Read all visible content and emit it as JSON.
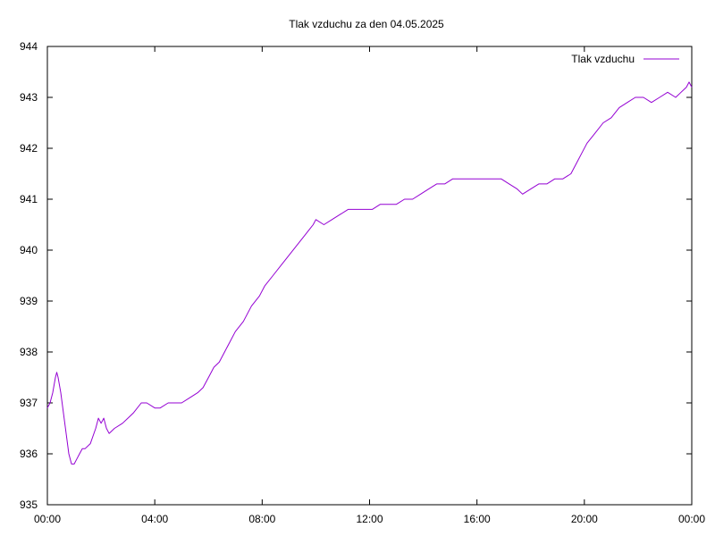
{
  "chart_data": {
    "type": "line",
    "title": "Tlak vzduchu za den 04.05.2025",
    "xlabel": "",
    "ylabel": "",
    "xlim": [
      0,
      24
    ],
    "ylim": [
      935,
      944
    ],
    "x_ticks": [
      {
        "value": 0,
        "label": "00:00"
      },
      {
        "value": 4,
        "label": "04:00"
      },
      {
        "value": 8,
        "label": "08:00"
      },
      {
        "value": 12,
        "label": "12:00"
      },
      {
        "value": 16,
        "label": "16:00"
      },
      {
        "value": 20,
        "label": "20:00"
      },
      {
        "value": 24,
        "label": "00:00"
      }
    ],
    "y_ticks": [
      {
        "value": 935,
        "label": "935"
      },
      {
        "value": 936,
        "label": "936"
      },
      {
        "value": 937,
        "label": "937"
      },
      {
        "value": 938,
        "label": "938"
      },
      {
        "value": 939,
        "label": "939"
      },
      {
        "value": 940,
        "label": "940"
      },
      {
        "value": 941,
        "label": "941"
      },
      {
        "value": 942,
        "label": "942"
      },
      {
        "value": 943,
        "label": "943"
      },
      {
        "value": 944,
        "label": "944"
      }
    ],
    "grid": false,
    "legend_position": "top-right",
    "series": [
      {
        "name": "Tlak vzduchu",
        "color": "#9400d3",
        "x": [
          0.0,
          0.1,
          0.2,
          0.3,
          0.35,
          0.4,
          0.5,
          0.6,
          0.7,
          0.8,
          0.9,
          1.0,
          1.1,
          1.2,
          1.3,
          1.4,
          1.6,
          1.8,
          1.9,
          2.0,
          2.1,
          2.2,
          2.3,
          2.5,
          2.8,
          3.0,
          3.2,
          3.5,
          3.7,
          4.0,
          4.2,
          4.5,
          5.0,
          5.3,
          5.6,
          5.8,
          6.0,
          6.2,
          6.4,
          6.6,
          6.8,
          7.0,
          7.3,
          7.6,
          7.9,
          8.1,
          8.4,
          8.7,
          9.0,
          9.3,
          9.6,
          9.9,
          10.0,
          10.3,
          10.6,
          10.9,
          11.2,
          11.5,
          11.8,
          12.1,
          12.4,
          12.7,
          13.0,
          13.3,
          13.6,
          13.9,
          14.2,
          14.5,
          14.8,
          15.1,
          15.4,
          15.7,
          16.0,
          16.3,
          16.6,
          16.9,
          17.2,
          17.5,
          17.7,
          18.0,
          18.3,
          18.6,
          18.9,
          19.2,
          19.5,
          19.7,
          19.9,
          20.1,
          20.4,
          20.7,
          21.0,
          21.3,
          21.6,
          21.9,
          22.2,
          22.5,
          22.8,
          23.1,
          23.4,
          23.6,
          23.8,
          23.9,
          24.0
        ],
        "y": [
          936.9,
          937.0,
          937.2,
          937.5,
          937.6,
          937.5,
          937.2,
          936.8,
          936.4,
          936.0,
          935.8,
          935.8,
          935.9,
          936.0,
          936.1,
          936.1,
          936.2,
          936.5,
          936.7,
          936.6,
          936.7,
          936.5,
          936.4,
          936.5,
          936.6,
          936.7,
          936.8,
          937.0,
          937.0,
          936.9,
          936.9,
          937.0,
          937.0,
          937.1,
          937.2,
          937.3,
          937.5,
          937.7,
          937.8,
          938.0,
          938.2,
          938.4,
          938.6,
          938.9,
          939.1,
          939.3,
          939.5,
          939.7,
          939.9,
          940.1,
          940.3,
          940.5,
          940.6,
          940.5,
          940.6,
          940.7,
          940.8,
          940.8,
          940.8,
          940.8,
          940.9,
          940.9,
          940.9,
          941.0,
          941.0,
          941.1,
          941.2,
          941.3,
          941.3,
          941.4,
          941.4,
          941.4,
          941.4,
          941.4,
          941.4,
          941.4,
          941.3,
          941.2,
          941.1,
          941.2,
          941.3,
          941.3,
          941.4,
          941.4,
          941.5,
          941.7,
          941.9,
          942.1,
          942.3,
          942.5,
          942.6,
          942.8,
          942.9,
          943.0,
          943.0,
          942.9,
          943.0,
          943.1,
          943.0,
          943.1,
          943.2,
          943.3,
          943.2
        ]
      }
    ]
  }
}
